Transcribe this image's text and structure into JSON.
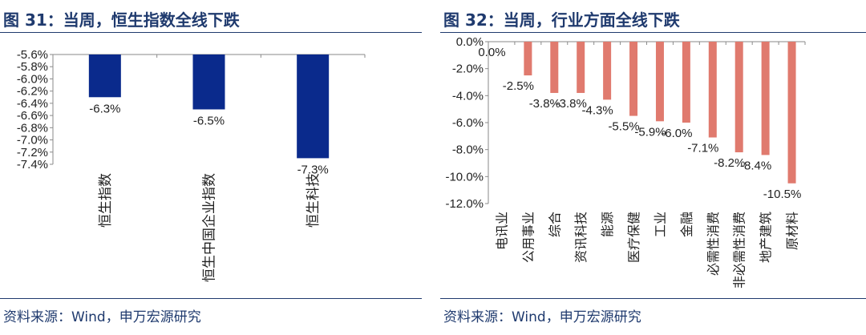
{
  "panels": [
    {
      "title": "图 31：当周，恒生指数全线下跌",
      "source": "资料来源：Wind，申万宏源研究"
    },
    {
      "title": "图 32：当周，行业方面全线下跌",
      "source": "资料来源：Wind，申万宏源研究"
    }
  ],
  "chart_data": [
    {
      "type": "bar",
      "categories": [
        "恒生指数",
        "恒生中国企业指数",
        "恒生科技"
      ],
      "values": [
        -6.3,
        -6.5,
        -7.3
      ],
      "data_labels": [
        "-6.3%",
        "-6.5%",
        "-7.3%"
      ],
      "yticks": [
        "-5.6%",
        "-5.8%",
        "-6.0%",
        "-6.2%",
        "-6.4%",
        "-6.6%",
        "-6.8%",
        "-7.0%",
        "-7.2%",
        "-7.4%"
      ],
      "ylim": [
        -7.4,
        -5.6
      ],
      "bar_color": "#0a2a8c",
      "grid": false,
      "legend": "none"
    },
    {
      "type": "bar",
      "categories": [
        "电讯业",
        "公用事业",
        "综合",
        "资讯科技",
        "能源",
        "医疗保健",
        "工业",
        "金融",
        "必需性消费",
        "非必需性消费",
        "地产建筑",
        "原材料"
      ],
      "values": [
        0.0,
        -2.5,
        -3.8,
        -3.8,
        -4.3,
        -5.5,
        -5.9,
        -6.0,
        -7.1,
        -8.2,
        -8.4,
        -10.5
      ],
      "data_labels": [
        "0.0%",
        "-2.5%",
        "-3.8%",
        "-3.8%",
        "-4.3%",
        "-5.5%",
        "-5.9%",
        "-6.0%",
        "-7.1%",
        "-8.2%",
        "-8.4%",
        "-10.5%"
      ],
      "yticks": [
        "0.0%",
        "-2.0%",
        "-4.0%",
        "-6.0%",
        "-8.0%",
        "-10.0%",
        "-12.0%"
      ],
      "ylim": [
        -12.0,
        0.0
      ],
      "bar_color": "#e07a6e",
      "grid": false,
      "legend": "none"
    }
  ]
}
